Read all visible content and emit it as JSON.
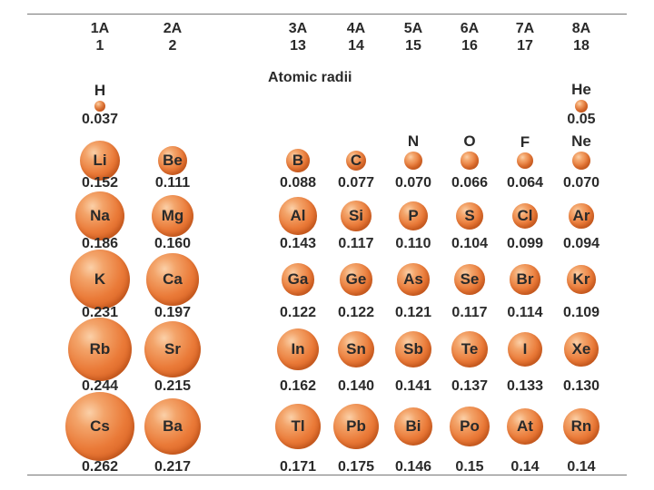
{
  "title": "Atomic radii",
  "groups": [
    {
      "label": "1A",
      "number": "1"
    },
    {
      "label": "2A",
      "number": "2"
    },
    {
      "label": "3A",
      "number": "13"
    },
    {
      "label": "4A",
      "number": "14"
    },
    {
      "label": "5A",
      "number": "15"
    },
    {
      "label": "6A",
      "number": "16"
    },
    {
      "label": "7A",
      "number": "17"
    },
    {
      "label": "8A",
      "number": "18"
    }
  ],
  "elements": [
    {
      "symbol": "H",
      "radius": "0.037",
      "group": 0,
      "period": 1
    },
    {
      "symbol": "He",
      "radius": "0.05",
      "group": 7,
      "period": 1
    },
    {
      "symbol": "Li",
      "radius": "0.152",
      "group": 0,
      "period": 2
    },
    {
      "symbol": "Be",
      "radius": "0.111",
      "group": 1,
      "period": 2
    },
    {
      "symbol": "B",
      "radius": "0.088",
      "group": 2,
      "period": 2
    },
    {
      "symbol": "C",
      "radius": "0.077",
      "group": 3,
      "period": 2
    },
    {
      "symbol": "N",
      "radius": "0.070",
      "group": 4,
      "period": 2
    },
    {
      "symbol": "O",
      "radius": "0.066",
      "group": 5,
      "period": 2
    },
    {
      "symbol": "F",
      "radius": "0.064",
      "group": 6,
      "period": 2
    },
    {
      "symbol": "Ne",
      "radius": "0.070",
      "group": 7,
      "period": 2
    },
    {
      "symbol": "Na",
      "radius": "0.186",
      "group": 0,
      "period": 3
    },
    {
      "symbol": "Mg",
      "radius": "0.160",
      "group": 1,
      "period": 3
    },
    {
      "symbol": "Al",
      "radius": "0.143",
      "group": 2,
      "period": 3
    },
    {
      "symbol": "Si",
      "radius": "0.117",
      "group": 3,
      "period": 3
    },
    {
      "symbol": "P",
      "radius": "0.110",
      "group": 4,
      "period": 3
    },
    {
      "symbol": "S",
      "radius": "0.104",
      "group": 5,
      "period": 3
    },
    {
      "symbol": "Cl",
      "radius": "0.099",
      "group": 6,
      "period": 3
    },
    {
      "symbol": "Ar",
      "radius": "0.094",
      "group": 7,
      "period": 3
    },
    {
      "symbol": "K",
      "radius": "0.231",
      "group": 0,
      "period": 4
    },
    {
      "symbol": "Ca",
      "radius": "0.197",
      "group": 1,
      "period": 4
    },
    {
      "symbol": "Ga",
      "radius": "0.122",
      "group": 2,
      "period": 4
    },
    {
      "symbol": "Ge",
      "radius": "0.122",
      "group": 3,
      "period": 4
    },
    {
      "symbol": "As",
      "radius": "0.121",
      "group": 4,
      "period": 4
    },
    {
      "symbol": "Se",
      "radius": "0.117",
      "group": 5,
      "period": 4
    },
    {
      "symbol": "Br",
      "radius": "0.114",
      "group": 6,
      "period": 4
    },
    {
      "symbol": "Kr",
      "radius": "0.109",
      "group": 7,
      "period": 4
    },
    {
      "symbol": "Rb",
      "radius": "0.244",
      "group": 0,
      "period": 5
    },
    {
      "symbol": "Sr",
      "radius": "0.215",
      "group": 1,
      "period": 5
    },
    {
      "symbol": "In",
      "radius": "0.162",
      "group": 2,
      "period": 5
    },
    {
      "symbol": "Sn",
      "radius": "0.140",
      "group": 3,
      "period": 5
    },
    {
      "symbol": "Sb",
      "radius": "0.141",
      "group": 4,
      "period": 5
    },
    {
      "symbol": "Te",
      "radius": "0.137",
      "group": 5,
      "period": 5
    },
    {
      "symbol": "I",
      "radius": "0.133",
      "group": 6,
      "period": 5
    },
    {
      "symbol": "Xe",
      "radius": "0.130",
      "group": 7,
      "period": 5
    },
    {
      "symbol": "Cs",
      "radius": "0.262",
      "group": 0,
      "period": 6
    },
    {
      "symbol": "Ba",
      "radius": "0.217",
      "group": 1,
      "period": 6
    },
    {
      "symbol": "Tl",
      "radius": "0.171",
      "group": 2,
      "period": 6
    },
    {
      "symbol": "Pb",
      "radius": "0.175",
      "group": 3,
      "period": 6
    },
    {
      "symbol": "Bi",
      "radius": "0.146",
      "group": 4,
      "period": 6
    },
    {
      "symbol": "Po",
      "radius": "0.15",
      "group": 5,
      "period": 6
    },
    {
      "symbol": "At",
      "radius": "0.14",
      "group": 6,
      "period": 6
    },
    {
      "symbol": "Rn",
      "radius": "0.14",
      "group": 7,
      "period": 6
    }
  ]
}
